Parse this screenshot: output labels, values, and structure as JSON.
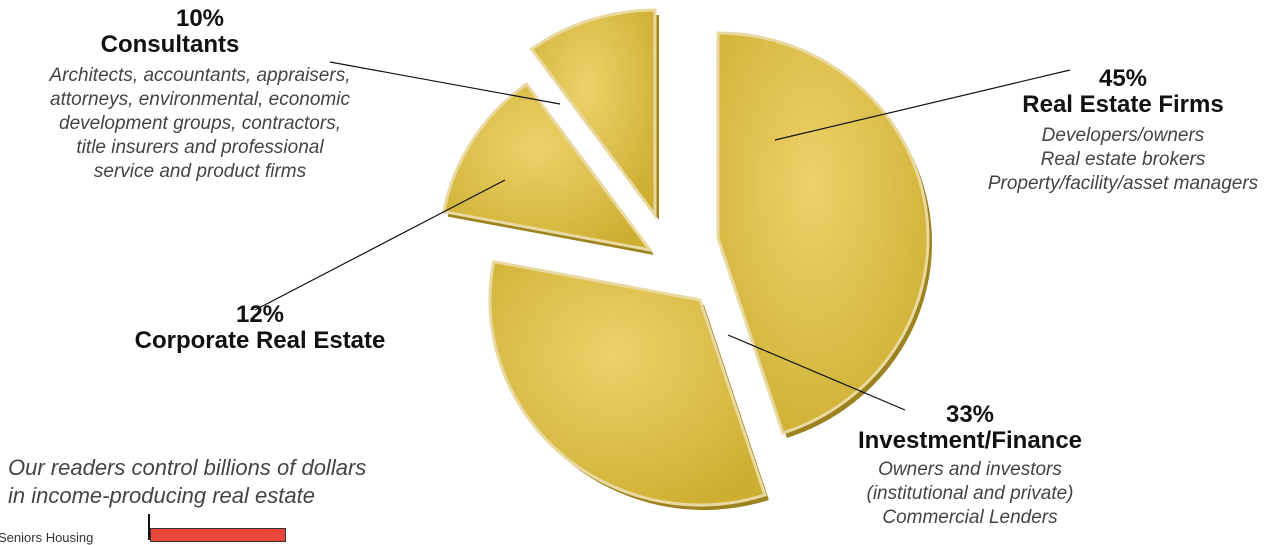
{
  "chart_data": {
    "type": "pie",
    "slices": [
      {
        "key": "real-estate",
        "pct_label": "45%",
        "value": 45,
        "category": "Real Estate Firms",
        "description": "Developers/owners\nReal estate brokers\nProperty/facility/asset managers"
      },
      {
        "key": "investment",
        "pct_label": "33%",
        "value": 33,
        "category": "Investment/Finance",
        "description": "Owners and investors\n(institutional and private)\nCommercial Lenders"
      },
      {
        "key": "corporate",
        "pct_label": "12%",
        "value": 12,
        "category": "Corporate Real Estate",
        "description": ""
      },
      {
        "key": "consultants",
        "pct_label": "10%",
        "value": 10,
        "category": "Consultants",
        "description": "Architects, accountants, appraisers,\nattorneys, environmental, economic\ndevelopment groups, contractors,\ntitle insurers and professional\nservice and product firms"
      }
    ],
    "colors": {
      "fill": "#d6b93a",
      "fill_light": "#ecd26a",
      "edge": "#9c831f",
      "rim": "#e9d9a0"
    }
  },
  "footer": {
    "note": "Our readers control billions of dollars\nin income-producing real estate",
    "bar_label": "Seniors Housing",
    "bar_color": "#e8473a"
  }
}
